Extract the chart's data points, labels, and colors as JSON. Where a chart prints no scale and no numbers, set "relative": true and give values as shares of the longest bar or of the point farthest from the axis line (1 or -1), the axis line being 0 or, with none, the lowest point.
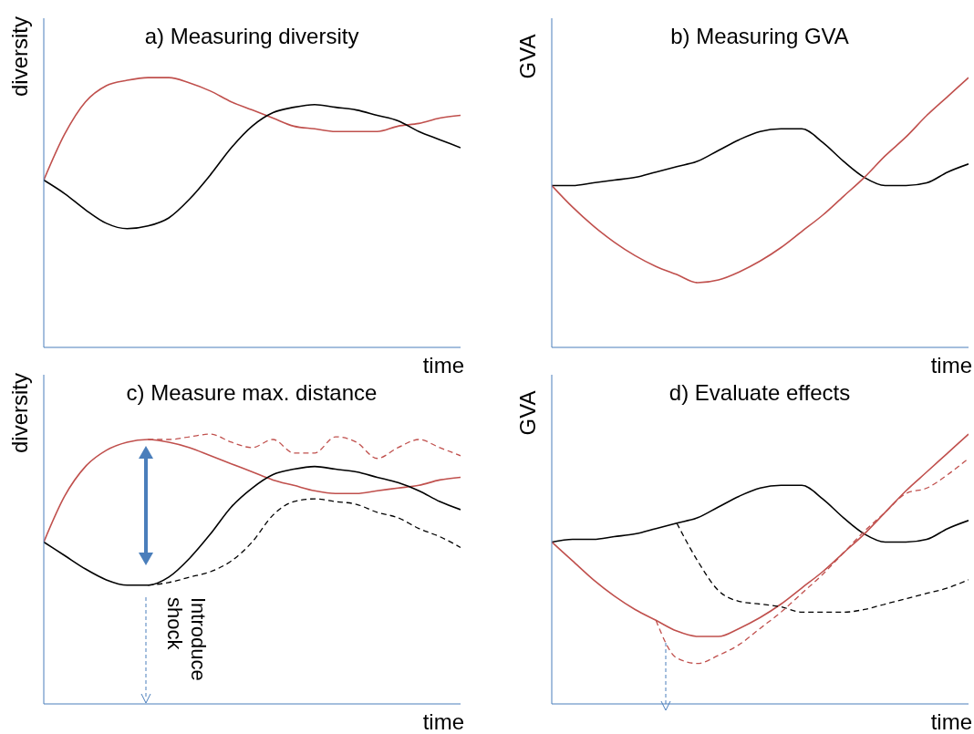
{
  "chart_data": [
    {
      "type": "line",
      "title": "a) Measuring diversity",
      "xlabel": "time",
      "ylabel": "diversity",
      "relative": true,
      "legend": false,
      "grid": false,
      "marker": "none",
      "categories": [
        null,
        null,
        null,
        null,
        null,
        null,
        null,
        null,
        null,
        null,
        null,
        null,
        null,
        null,
        null,
        null,
        null,
        null,
        null,
        null,
        null
      ],
      "series": [
        {
          "color": "#c0504d",
          "line_style": "solid",
          "values": [
            0.62,
            0.79,
            0.91,
            0.97,
            0.99,
            1,
            1,
            0.98,
            0.95,
            0.91,
            0.88,
            0.85,
            0.82,
            0.81,
            0.8,
            0.8,
            0.8,
            0.82,
            0.83,
            0.85,
            0.86
          ]
        },
        {
          "color": "#000000",
          "line_style": "solid",
          "values": [
            0.62,
            0.57,
            0.51,
            0.46,
            0.44,
            0.45,
            0.48,
            0.55,
            0.64,
            0.74,
            0.82,
            0.87,
            0.89,
            0.9,
            0.89,
            0.88,
            0.86,
            0.84,
            0.8,
            0.77,
            0.74
          ]
        }
      ]
    },
    {
      "type": "line",
      "title": "b) Measuring GVA",
      "xlabel": "time",
      "ylabel": "GVA",
      "relative": true,
      "legend": false,
      "grid": false,
      "marker": "none",
      "categories": [
        null,
        null,
        null,
        null,
        null,
        null,
        null,
        null,
        null,
        null,
        null,
        null,
        null,
        null,
        null,
        null,
        null,
        null,
        null,
        null,
        null
      ],
      "series": [
        {
          "color": "#000000",
          "line_style": "solid",
          "values": [
            0.6,
            0.6,
            0.61,
            0.62,
            0.63,
            0.65,
            0.67,
            0.69,
            0.73,
            0.77,
            0.8,
            0.81,
            0.81,
            0.76,
            0.69,
            0.63,
            0.6,
            0.6,
            0.61,
            0.65,
            0.68
          ]
        },
        {
          "color": "#c0504d",
          "line_style": "solid",
          "values": [
            0.6,
            0.52,
            0.45,
            0.39,
            0.34,
            0.3,
            0.27,
            0.24,
            0.25,
            0.28,
            0.32,
            0.37,
            0.43,
            0.49,
            0.56,
            0.63,
            0.71,
            0.78,
            0.86,
            0.93,
            1
          ]
        }
      ]
    },
    {
      "type": "line",
      "title": "c) Measure max. distance",
      "xlabel": "time",
      "ylabel": "diversity",
      "relative": true,
      "legend": false,
      "grid": false,
      "marker": "none",
      "annotations": [
        "Introduce shock"
      ],
      "categories": [
        null,
        null,
        null,
        null,
        null,
        null,
        null,
        null,
        null,
        null,
        null,
        null,
        null,
        null,
        null,
        null,
        null,
        null,
        null,
        null,
        null
      ],
      "series": [
        {
          "color": "#c0504d",
          "line_style": "solid",
          "values": [
            0.6,
            0.77,
            0.88,
            0.94,
            0.97,
            0.98,
            0.97,
            0.95,
            0.92,
            0.89,
            0.86,
            0.83,
            0.81,
            0.79,
            0.78,
            0.78,
            0.79,
            0.8,
            0.81,
            0.83,
            0.84
          ]
        },
        {
          "color": "#000000",
          "line_style": "solid",
          "values": [
            0.6,
            0.55,
            0.5,
            0.46,
            0.44,
            0.44,
            0.47,
            0.54,
            0.63,
            0.73,
            0.8,
            0.85,
            0.87,
            0.88,
            0.87,
            0.86,
            0.84,
            0.82,
            0.79,
            0.75,
            0.72
          ]
        },
        {
          "color": "#c0504d",
          "line_style": "dashed",
          "values": [
            null,
            null,
            null,
            null,
            null,
            0.98,
            0.98,
            0.99,
            1,
            0.97,
            0.95,
            0.98,
            0.93,
            0.93,
            0.99,
            0.97,
            0.91,
            0.95,
            0.98,
            0.95,
            0.92
          ]
        },
        {
          "color": "#000000",
          "line_style": "dashed",
          "values": [
            null,
            null,
            null,
            null,
            null,
            0.44,
            0.45,
            0.47,
            0.49,
            0.53,
            0.6,
            0.7,
            0.75,
            0.76,
            0.75,
            0.74,
            0.71,
            0.69,
            0.65,
            0.62,
            0.58
          ]
        }
      ]
    },
    {
      "type": "line",
      "title": "d) Evaluate effects",
      "xlabel": "time",
      "ylabel": "GVA",
      "relative": true,
      "legend": false,
      "grid": false,
      "marker": "none",
      "categories": [
        null,
        null,
        null,
        null,
        null,
        null,
        null,
        null,
        null,
        null,
        null,
        null,
        null,
        null,
        null,
        null,
        null,
        null,
        null,
        null,
        null
      ],
      "series": [
        {
          "color": "#000000",
          "line_style": "solid",
          "values": [
            0.6,
            0.61,
            0.61,
            0.62,
            0.63,
            0.65,
            0.67,
            0.69,
            0.73,
            0.77,
            0.8,
            0.81,
            0.81,
            0.76,
            0.69,
            0.63,
            0.6,
            0.6,
            0.61,
            0.65,
            0.68
          ]
        },
        {
          "color": "#c0504d",
          "line_style": "solid",
          "values": [
            0.6,
            0.53,
            0.46,
            0.4,
            0.35,
            0.31,
            0.27,
            0.25,
            0.25,
            0.28,
            0.32,
            0.37,
            0.43,
            0.49,
            0.56,
            0.63,
            0.71,
            0.79,
            0.86,
            0.93,
            1
          ]
        },
        {
          "color": "#000000",
          "line_style": "dashed",
          "values": [
            null,
            null,
            null,
            null,
            null,
            null,
            0.67,
            0.53,
            0.42,
            0.38,
            0.37,
            0.36,
            0.34,
            0.34,
            0.34,
            0.35,
            0.37,
            0.39,
            0.41,
            0.43,
            0.46
          ]
        },
        {
          "color": "#c0504d",
          "line_style": "dashed",
          "values": [
            null,
            null,
            null,
            null,
            null,
            0.31,
            0.17,
            0.15,
            0.18,
            0.22,
            0.28,
            0.34,
            0.41,
            0.48,
            0.56,
            0.64,
            0.71,
            0.78,
            0.8,
            0.85,
            0.91
          ]
        }
      ]
    }
  ]
}
